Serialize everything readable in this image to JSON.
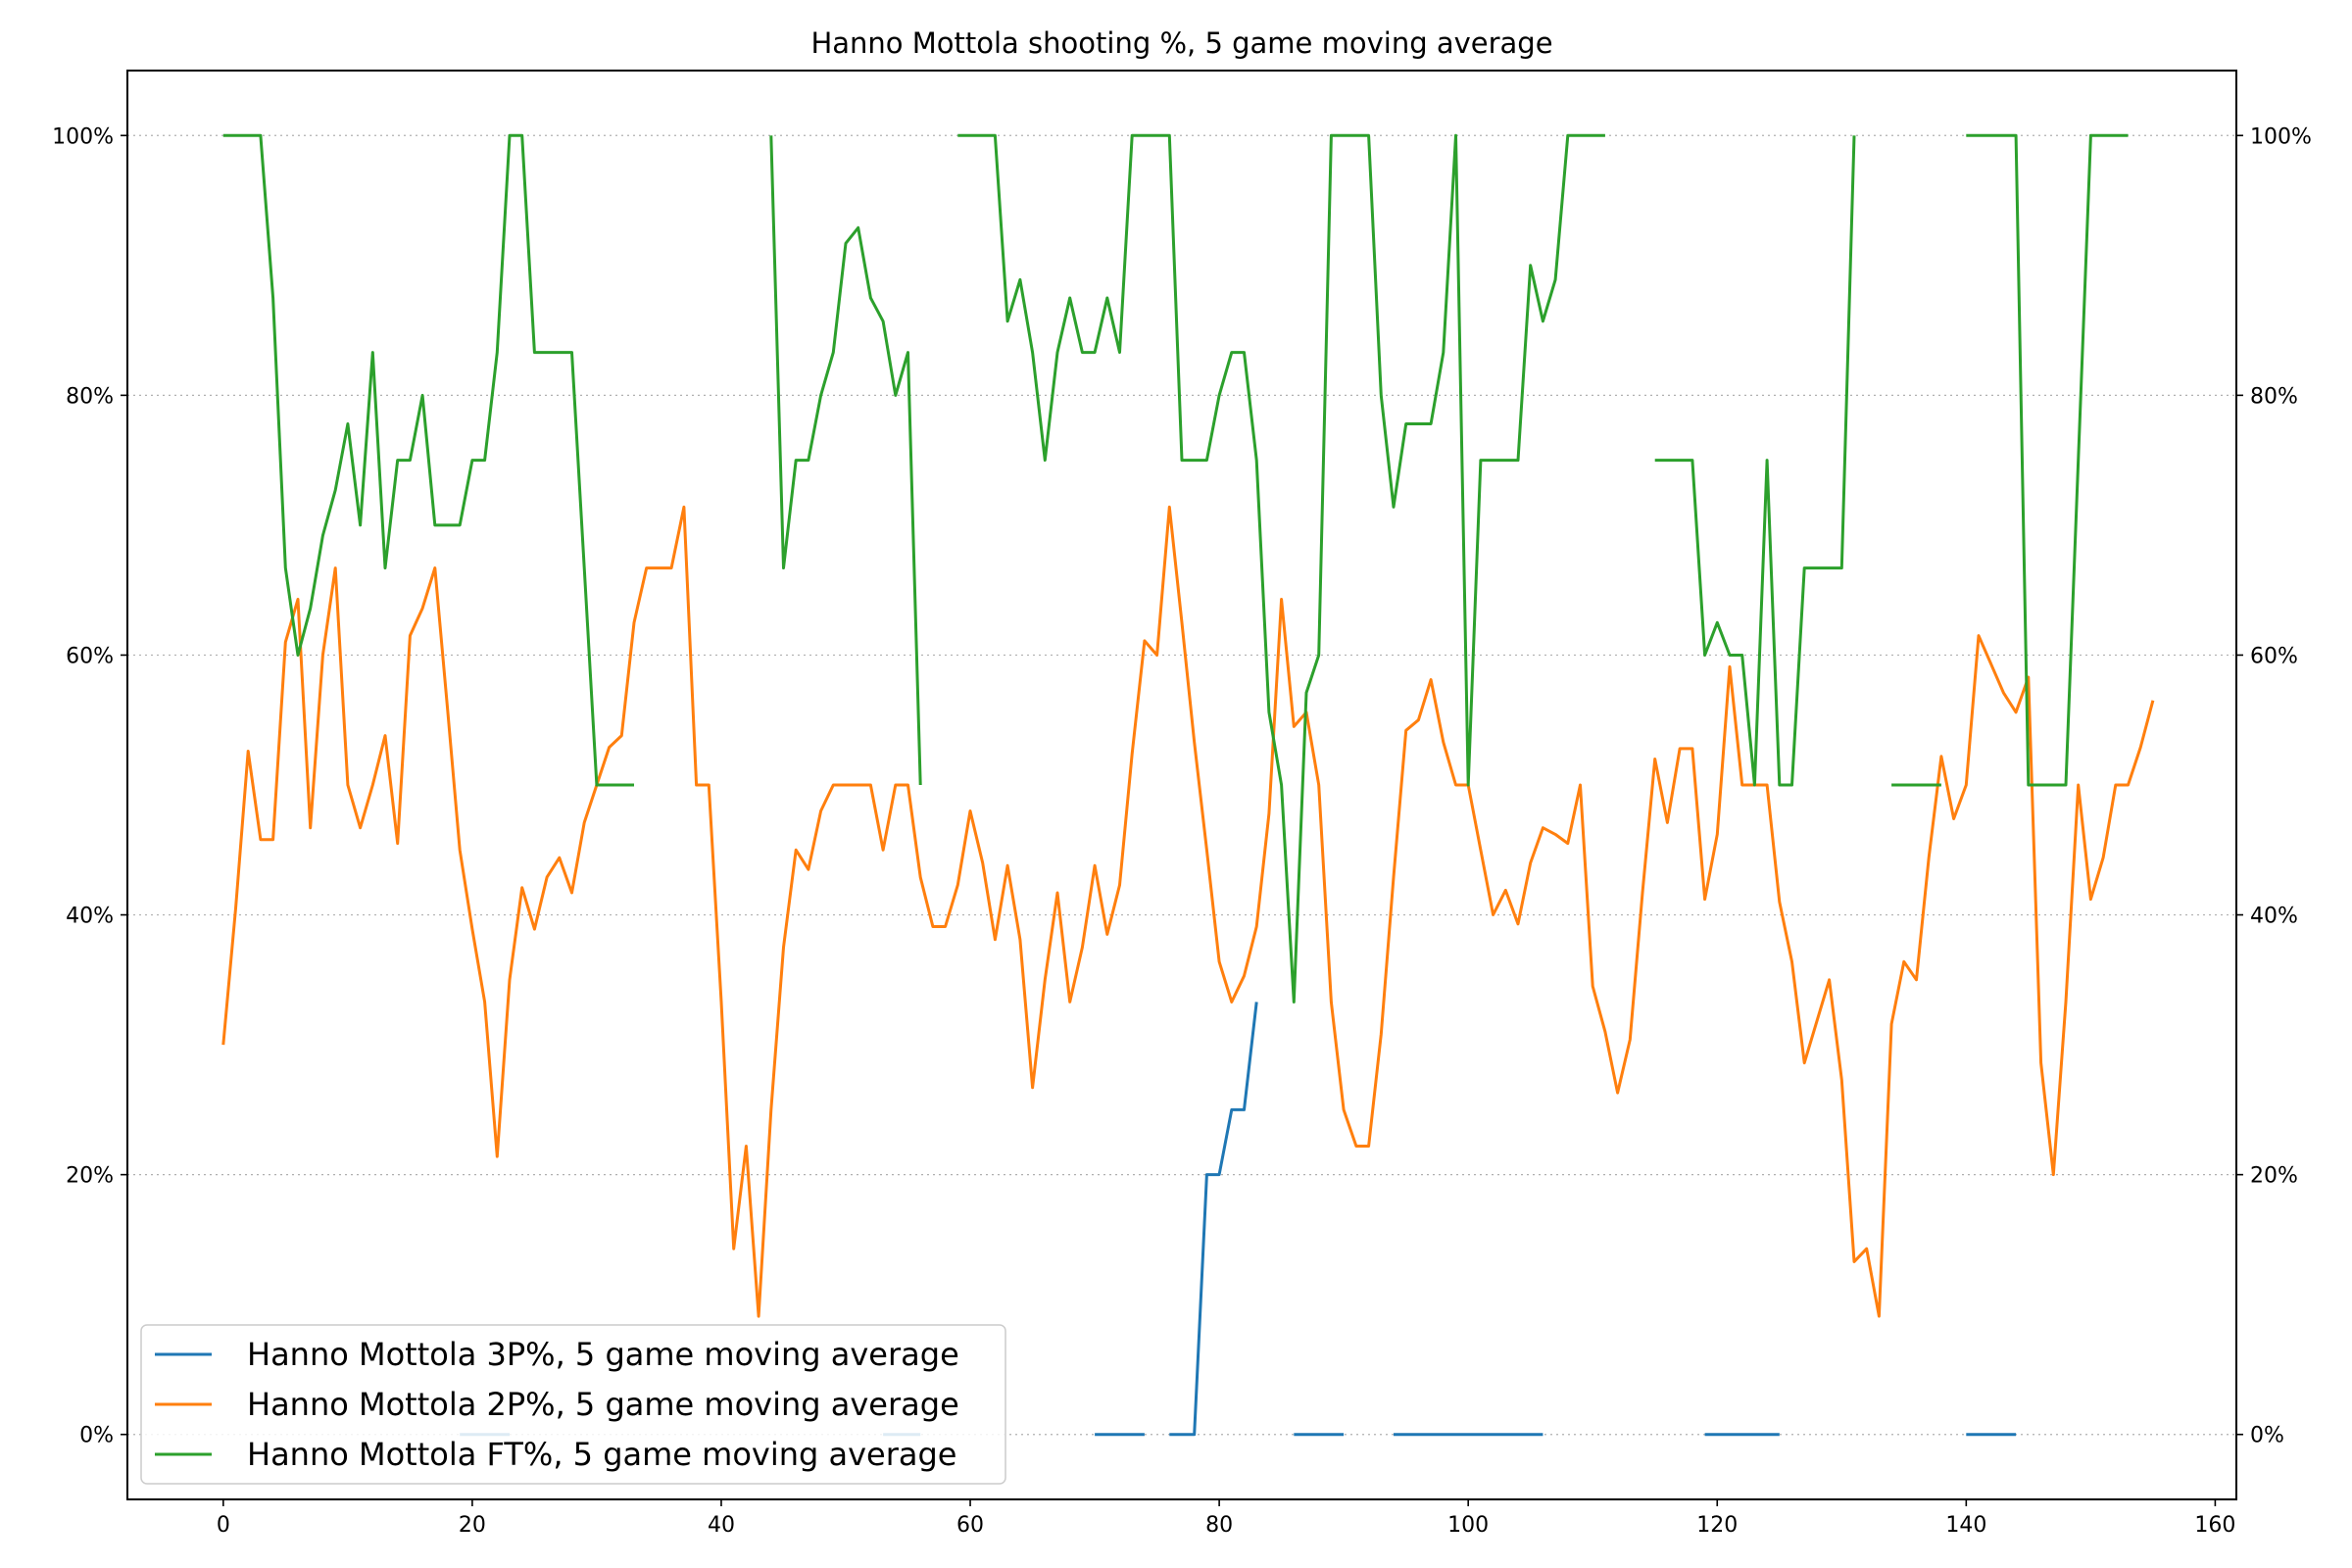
{
  "chart_data": {
    "type": "line",
    "title": "Hanno Mottola shooting %, 5 game moving average",
    "xlabel": "",
    "ylabel": "",
    "xlim": [
      -7.7,
      161.7
    ],
    "ylim": [
      -5,
      105
    ],
    "x_ticks": [
      0,
      20,
      40,
      60,
      80,
      100,
      120,
      140,
      160
    ],
    "y_ticks": [
      0,
      20,
      40,
      60,
      80,
      100
    ],
    "y_tick_labels": [
      "0%",
      "20%",
      "40%",
      "60%",
      "80%",
      "100%"
    ],
    "grid": "horizontal-dotted",
    "secondary_y_axis": "right, same scale",
    "legend_position": "lower-left",
    "series": [
      {
        "name": "Hanno Mottola 3P%, 5 game moving average",
        "color": "#1f77b4",
        "values": [
          null,
          null,
          null,
          null,
          null,
          null,
          null,
          null,
          null,
          null,
          null,
          null,
          null,
          null,
          null,
          null,
          null,
          null,
          null,
          0,
          0,
          0,
          0,
          0,
          null,
          null,
          null,
          null,
          null,
          null,
          null,
          null,
          null,
          null,
          null,
          null,
          null,
          null,
          null,
          null,
          null,
          null,
          null,
          null,
          null,
          null,
          null,
          null,
          null,
          null,
          null,
          null,
          null,
          0,
          0,
          0,
          0,
          null,
          null,
          null,
          null,
          null,
          null,
          null,
          null,
          null,
          null,
          null,
          null,
          null,
          0,
          0,
          0,
          0,
          0,
          null,
          0,
          0,
          0,
          20,
          20,
          25,
          25,
          33.3,
          null,
          null,
          0,
          0,
          0,
          0,
          0,
          null,
          null,
          null,
          0,
          0,
          0,
          0,
          0,
          0,
          0,
          0,
          0,
          0,
          0,
          0,
          0,
          null,
          null,
          null,
          null,
          null,
          null,
          null,
          null,
          null,
          null,
          null,
          null,
          0,
          0,
          0,
          0,
          0,
          0,
          0,
          null,
          null,
          null,
          null,
          null,
          null,
          null,
          null,
          null,
          null,
          null,
          null,
          null,
          null,
          0,
          0,
          0,
          0,
          0,
          null,
          null,
          null,
          null,
          null,
          null,
          null,
          null,
          null,
          null
        ]
      },
      {
        "name": "Hanno Mottola 2P%, 5 game moving average",
        "color": "#ff7f0e",
        "values": [
          30,
          40.5,
          52.6,
          45.8,
          45.8,
          61,
          64.3,
          46.7,
          60,
          66.7,
          50,
          46.7,
          50,
          53.8,
          45.5,
          61.5,
          63.6,
          66.7,
          56,
          45,
          38.9,
          33.3,
          21.4,
          35,
          42.1,
          38.9,
          42.9,
          44.4,
          41.7,
          47.1,
          50,
          52.9,
          53.8,
          62.5,
          66.7,
          66.7,
          66.7,
          71.4,
          50,
          50,
          33.3,
          14.3,
          22.2,
          9.1,
          25,
          37.5,
          45,
          43.5,
          48,
          50,
          50,
          50,
          50,
          45,
          50,
          50,
          42.9,
          39.1,
          39.1,
          42.3,
          48,
          44,
          38.1,
          43.8,
          38.1,
          26.7,
          35,
          41.7,
          33.3,
          37.5,
          43.8,
          38.5,
          42.3,
          52.4,
          61.1,
          60,
          71.4,
          62.5,
          53.3,
          45,
          36.4,
          33.3,
          35.3,
          39.1,
          47.8,
          64.3,
          54.5,
          55.6,
          50,
          33.3,
          25,
          22.2,
          22.2,
          30.8,
          42.9,
          54.2,
          55,
          58.1,
          53.3,
          50,
          50,
          45,
          40,
          41.9,
          39.3,
          44,
          46.7,
          46.2,
          45.5,
          50,
          34.5,
          31,
          26.3,
          30.4,
          41.7,
          52,
          47.1,
          52.8,
          52.8,
          41.2,
          46.2,
          59.1,
          50,
          50,
          50,
          41,
          36.4,
          28.6,
          31.8,
          35,
          27.3,
          13.3,
          14.3,
          9.1,
          31.6,
          36.4,
          35,
          44.4,
          52.2,
          47.4,
          50,
          61.5,
          59.3,
          57.1,
          55.6,
          58.3,
          28.6,
          20,
          33.3,
          50,
          41.2,
          44.4,
          50,
          50,
          52.9,
          56.5
        ]
      },
      {
        "name": "Hanno Mottola FT%, 5 game moving average",
        "color": "#2ca02c",
        "values": [
          100,
          100,
          100,
          100,
          87.5,
          66.7,
          60,
          63.6,
          69.2,
          72.7,
          77.8,
          70,
          83.3,
          66.7,
          75,
          75,
          80,
          70,
          70,
          70,
          75,
          75,
          83.3,
          100,
          100,
          83.3,
          83.3,
          83.3,
          83.3,
          66.7,
          50,
          50,
          50,
          50,
          null,
          null,
          null,
          null,
          null,
          null,
          null,
          null,
          null,
          null,
          100,
          66.7,
          75,
          75,
          80,
          83.3,
          91.7,
          92.9,
          87.5,
          85.7,
          80,
          83.3,
          50,
          null,
          null,
          100,
          100,
          100,
          100,
          85.7,
          88.9,
          83.3,
          75,
          83.3,
          87.5,
          83.3,
          83.3,
          87.5,
          83.3,
          100,
          100,
          100,
          100,
          75,
          75,
          75,
          80,
          83.3,
          83.3,
          75,
          55.6,
          50,
          33.3,
          57.1,
          60,
          100,
          100,
          100,
          100,
          80,
          71.4,
          77.8,
          77.8,
          77.8,
          83.3,
          100,
          50,
          75,
          75,
          75,
          75,
          90,
          85.7,
          88.9,
          100,
          100,
          100,
          100,
          null,
          null,
          null,
          75,
          75,
          75,
          75,
          60,
          62.5,
          60,
          60,
          50,
          75,
          50,
          50,
          66.7,
          66.7,
          66.7,
          66.7,
          100,
          null,
          null,
          50,
          50,
          50,
          50,
          50,
          null,
          100,
          100,
          100,
          100,
          100,
          50,
          50,
          50,
          50,
          75,
          100,
          100,
          100,
          100
        ]
      }
    ]
  }
}
